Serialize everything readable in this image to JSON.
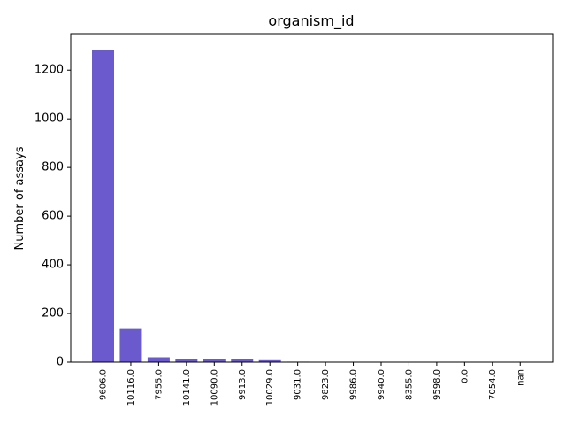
{
  "chart_data": {
    "type": "bar",
    "title": "organism_id",
    "xlabel": "",
    "ylabel": "Number of assays",
    "categories": [
      "9606.0",
      "10116.0",
      "7955.0",
      "10141.0",
      "10090.0",
      "9913.0",
      "10029.0",
      "9031.0",
      "9823.0",
      "9986.0",
      "9940.0",
      "8355.0",
      "9598.0",
      "0.0",
      "7054.0",
      "nan"
    ],
    "values": [
      1283,
      136,
      20,
      13,
      12,
      11,
      8,
      2,
      1,
      1,
      1,
      1,
      1,
      1,
      1,
      1
    ],
    "ylim": [
      0,
      1350
    ],
    "yticks": [
      0,
      200,
      400,
      600,
      800,
      1000,
      1200
    ],
    "bar_color": "#6a5acd",
    "grid": false,
    "legend": "none"
  }
}
